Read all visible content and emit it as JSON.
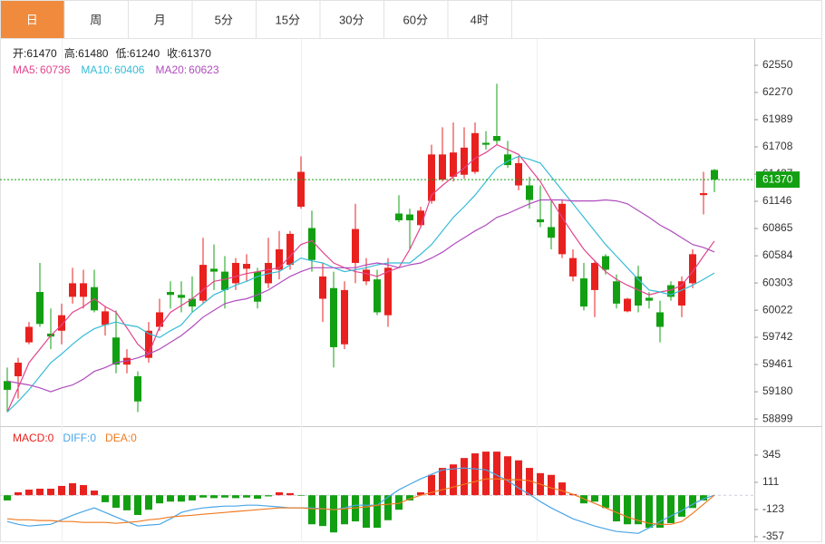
{
  "tabs": [
    "日",
    "周",
    "月",
    "5分",
    "15分",
    "30分",
    "60分",
    "4时"
  ],
  "active_tab": 0,
  "chart_data": {
    "type": "candlestick",
    "info_labels": [
      "开:",
      "高:",
      "低:",
      "收:"
    ],
    "up_color": "#e8211f",
    "down_color": "#12a012",
    "ylim": [
      58825,
      62803
    ],
    "yticks": [
      62550,
      62270,
      61989,
      61708,
      61427,
      61146,
      60865,
      60584,
      60303,
      60022,
      59742,
      59461,
      59180,
      58899
    ],
    "ohlc": [
      [
        59290,
        59430,
        58970,
        59200
      ],
      [
        59340,
        59530,
        59110,
        59480
      ],
      [
        59690,
        59900,
        59670,
        59850
      ],
      [
        60210,
        60510,
        59850,
        59880
      ],
      [
        59780,
        60040,
        59620,
        59750
      ],
      [
        59810,
        60090,
        59670,
        59970
      ],
      [
        60160,
        60460,
        60090,
        60300
      ],
      [
        60160,
        60440,
        60040,
        60300
      ],
      [
        60260,
        60440,
        60000,
        60020
      ],
      [
        59870,
        60060,
        59760,
        60010
      ],
      [
        59740,
        60020,
        59370,
        59460
      ],
      [
        59460,
        59620,
        59370,
        59530
      ],
      [
        59340,
        59390,
        58970,
        59080
      ],
      [
        59530,
        59900,
        59480,
        59810
      ],
      [
        59850,
        60140,
        59810,
        60000
      ],
      [
        60210,
        60320,
        60040,
        60180
      ],
      [
        60180,
        60320,
        60000,
        60150
      ],
      [
        60140,
        60370,
        60000,
        60060
      ],
      [
        60120,
        60770,
        60090,
        60490
      ],
      [
        60450,
        60700,
        60230,
        60420
      ],
      [
        60420,
        60580,
        60040,
        60230
      ],
      [
        60300,
        60560,
        60230,
        60510
      ],
      [
        60450,
        60600,
        60320,
        60500
      ],
      [
        60420,
        60460,
        60040,
        60110
      ],
      [
        60300,
        60770,
        60250,
        60510
      ],
      [
        60440,
        60840,
        60340,
        60650
      ],
      [
        60490,
        60840,
        60440,
        60810
      ],
      [
        61090,
        61610,
        61070,
        61450
      ],
      [
        60870,
        61050,
        60420,
        60540
      ],
      [
        60140,
        60510,
        59900,
        60370
      ],
      [
        60250,
        60420,
        59430,
        59640
      ],
      [
        59670,
        60320,
        59620,
        60230
      ],
      [
        60510,
        61120,
        60300,
        60860
      ],
      [
        60320,
        60560,
        60280,
        60440
      ],
      [
        60340,
        60440,
        59970,
        60000
      ],
      [
        59970,
        60560,
        59850,
        60460
      ],
      [
        61020,
        61210,
        60930,
        60950
      ],
      [
        61010,
        61070,
        60650,
        60950
      ],
      [
        60900,
        61090,
        60880,
        61050
      ],
      [
        61150,
        61730,
        61120,
        61630
      ],
      [
        61370,
        61910,
        61350,
        61630
      ],
      [
        61400,
        61960,
        61350,
        61650
      ],
      [
        61420,
        61910,
        61380,
        61700
      ],
      [
        61450,
        61960,
        61430,
        61850
      ],
      [
        61750,
        61870,
        61680,
        61730
      ],
      [
        61820,
        62360,
        61730,
        61770
      ],
      [
        61630,
        61770,
        61490,
        61520
      ],
      [
        61310,
        61610,
        61260,
        61540
      ],
      [
        61310,
        61400,
        61070,
        61160
      ],
      [
        60960,
        61310,
        60880,
        60930
      ],
      [
        60880,
        61150,
        60650,
        60770
      ],
      [
        60600,
        61160,
        60560,
        61120
      ],
      [
        60370,
        60650,
        60320,
        60560
      ],
      [
        60350,
        60510,
        60020,
        60060
      ],
      [
        60230,
        60540,
        59950,
        60510
      ],
      [
        60580,
        60600,
        60390,
        60440
      ],
      [
        60320,
        60390,
        60040,
        60090
      ],
      [
        60010,
        60150,
        60000,
        60140
      ],
      [
        60370,
        60480,
        60000,
        60070
      ],
      [
        60150,
        60210,
        60040,
        60120
      ],
      [
        60000,
        60120,
        59690,
        59850
      ],
      [
        60280,
        60320,
        60120,
        60160
      ],
      [
        60070,
        60370,
        59950,
        60320
      ],
      [
        60300,
        60650,
        60250,
        60600
      ],
      [
        61210,
        61450,
        61010,
        61230
      ],
      [
        61470,
        61480,
        61240,
        61370
      ]
    ],
    "ma": [
      {
        "name": "MA5:",
        "color": "#e2448c",
        "values": [
          58970,
          59220,
          59480,
          59620,
          59760,
          59870,
          60000,
          60060,
          60140,
          60060,
          60000,
          59840,
          59670,
          59570,
          59850,
          60000,
          60070,
          60140,
          60230,
          60320,
          60340,
          60370,
          60400,
          60420,
          60440,
          60460,
          60580,
          60700,
          60740,
          60620,
          60510,
          60460,
          60420,
          60400,
          60370,
          60420,
          60460,
          60650,
          60880,
          61210,
          61310,
          61400,
          61490,
          61590,
          61650,
          61730,
          61680,
          61630,
          61490,
          61350,
          61160,
          60980,
          60810,
          60650,
          60530,
          60420,
          60340,
          60280,
          60230,
          60180,
          60210,
          60230,
          60280,
          60420,
          60580,
          60736
        ]
      },
      {
        "name": "MA10:",
        "color": "#35bcd6",
        "values": [
          58970,
          59080,
          59200,
          59340,
          59480,
          59570,
          59670,
          59760,
          59830,
          59870,
          59900,
          59870,
          59850,
          59780,
          59740,
          59810,
          59870,
          60000,
          60090,
          60180,
          60230,
          60280,
          60320,
          60370,
          60400,
          60420,
          60490,
          60560,
          60530,
          60510,
          60460,
          60420,
          60440,
          60460,
          60490,
          60510,
          60510,
          60510,
          60600,
          60700,
          60840,
          60980,
          61090,
          61210,
          61350,
          61490,
          61560,
          61610,
          61580,
          61540,
          61400,
          61260,
          61120,
          60980,
          60840,
          60700,
          60580,
          60460,
          60340,
          60230,
          60210,
          60180,
          60230,
          60280,
          60340,
          60406
        ]
      },
      {
        "name": "MA20:",
        "color": "#b04cbe",
        "values": [
          59290,
          59270,
          59250,
          59220,
          59180,
          59220,
          59250,
          59310,
          59390,
          59430,
          59480,
          59500,
          59530,
          59570,
          59620,
          59690,
          59760,
          59850,
          59950,
          60020,
          60090,
          60120,
          60140,
          60180,
          60230,
          60300,
          60370,
          60420,
          60460,
          60460,
          60460,
          60460,
          60460,
          60490,
          60510,
          60490,
          60460,
          60490,
          60510,
          60560,
          60620,
          60700,
          60770,
          60840,
          60900,
          60980,
          61020,
          61070,
          61120,
          61160,
          61160,
          61160,
          61150,
          61150,
          61150,
          61160,
          61150,
          61120,
          61050,
          60980,
          60900,
          60840,
          60770,
          60700,
          60670,
          60623
        ]
      }
    ],
    "macd": {
      "ylim": [
        -404,
        563
      ],
      "yticks": [
        345,
        111,
        -123,
        -357
      ],
      "histogram": {
        "name": "MACD:",
        "color": "#e8211f",
        "values": [
          -45,
          25,
          48,
          56,
          56,
          80,
          103,
          87,
          40,
          -60,
          -108,
          -130,
          -170,
          -125,
          -70,
          -55,
          -55,
          -45,
          -20,
          -25,
          -20,
          -25,
          -20,
          -30,
          -10,
          25,
          18,
          -5,
          -250,
          -265,
          -320,
          -250,
          -225,
          -280,
          -280,
          -215,
          -125,
          -45,
          25,
          175,
          235,
          265,
          320,
          360,
          375,
          375,
          335,
          300,
          235,
          190,
          175,
          110,
          10,
          -70,
          -55,
          -110,
          -225,
          -250,
          -250,
          -280,
          -280,
          -240,
          -185,
          -110,
          -45,
          0
        ]
      },
      "series": [
        {
          "name": "DIFF:",
          "color": "#4aa6e6",
          "values": [
            -226,
            -250,
            -265,
            -257,
            -250,
            -211,
            -172,
            -140,
            -109,
            -148,
            -187,
            -226,
            -265,
            -257,
            -250,
            -203,
            -148,
            -125,
            -109,
            -101,
            -94,
            -94,
            -86,
            -86,
            -94,
            -101,
            -109,
            -109,
            -109,
            -117,
            -125,
            -109,
            -86,
            -86,
            -86,
            -16,
            47,
            94,
            140,
            179,
            218,
            226,
            234,
            226,
            218,
            172,
            125,
            62,
            8,
            -55,
            -109,
            -156,
            -203,
            -234,
            -265,
            -289,
            -312,
            -320,
            -328,
            -281,
            -226,
            -179,
            -133,
            -78,
            -31,
            0
          ]
        },
        {
          "name": "DEA:",
          "color": "#f07a20",
          "values": [
            -203,
            -211,
            -211,
            -218,
            -218,
            -226,
            -226,
            -234,
            -234,
            -234,
            -242,
            -234,
            -226,
            -211,
            -203,
            -187,
            -179,
            -172,
            -164,
            -156,
            -148,
            -140,
            -133,
            -125,
            -117,
            -109,
            -109,
            -109,
            -117,
            -117,
            -125,
            -117,
            -109,
            -101,
            -86,
            -78,
            -70,
            -31,
            0,
            23,
            47,
            70,
            94,
            117,
            140,
            140,
            133,
            133,
            125,
            94,
            62,
            39,
            8,
            -31,
            -70,
            -109,
            -148,
            -187,
            -218,
            -242,
            -250,
            -250,
            -226,
            -156,
            -78,
            0
          ]
        }
      ]
    }
  }
}
